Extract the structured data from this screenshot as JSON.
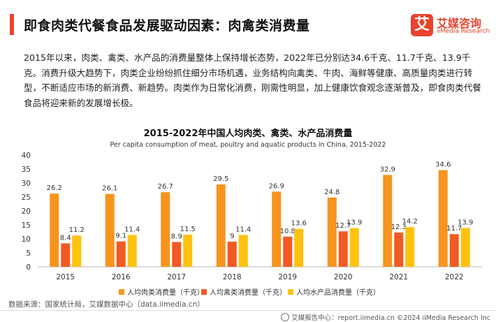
{
  "page": {
    "title": "即食肉类代餐食品发展驱动因素：肉禽类消费量",
    "description": "2015年以来，肉类、禽类、水产品的消费量整体上保持增长态势，2022年已分别达34.6千克、11.7千克、13.9千克。消费升级大趋势下，肉类企业纷纷抓住细分市场机遇，业务结构向禽类、牛肉、海鲜等健康、高质量肉类进行转型，不断适应市场的新消费、新趋势。肉类作为日常化消费，刚需性明显，加上健康饮食观念逐渐普及，即食肉类代餐食品将迎来新的发展增长极。",
    "source": "数据来源：国家统计局，艾媒数据中心（data.iimedia.cn）",
    "footer": "艾媒报告中心：report.iimedia.cn    ©2024  iiMedia Research  Inc"
  },
  "logo": {
    "mark": "艾",
    "name_cn": "艾媒咨询",
    "name_en": "iiMedia Research",
    "icon": "iimedia-logo-icon"
  },
  "chart_data": {
    "type": "bar",
    "title": "2015-2022年中国人均肉类、禽类、水产品消费量",
    "subtitle": "Per capita consumption of meat, poultry and aquatic products in China, 2015-2022",
    "categories": [
      "2015",
      "2016",
      "2017",
      "2018",
      "2019",
      "2020",
      "2021",
      "2022"
    ],
    "series": [
      {
        "name": "人均肉类消费量（千克）",
        "values": [
          26.2,
          26.1,
          26.7,
          29.5,
          26.9,
          24.8,
          32.9,
          34.6
        ],
        "color": "#f7941d"
      },
      {
        "name": "人均禽类消费量（千克）",
        "values": [
          8.4,
          9.1,
          8.9,
          9.0,
          10.8,
          12.7,
          12.3,
          11.7
        ],
        "color": "#f15a22"
      },
      {
        "name": "人均水产品消费量（千克）",
        "values": [
          11.2,
          11.4,
          11.5,
          11.4,
          13.6,
          13.9,
          14.2,
          13.9
        ],
        "color": "#ffc20e"
      }
    ],
    "ylim": [
      0,
      40
    ],
    "yticks": [
      0,
      5,
      10,
      15,
      20,
      25,
      30,
      35,
      40
    ],
    "grid": false,
    "legend": "bottom",
    "data_labels": true
  }
}
